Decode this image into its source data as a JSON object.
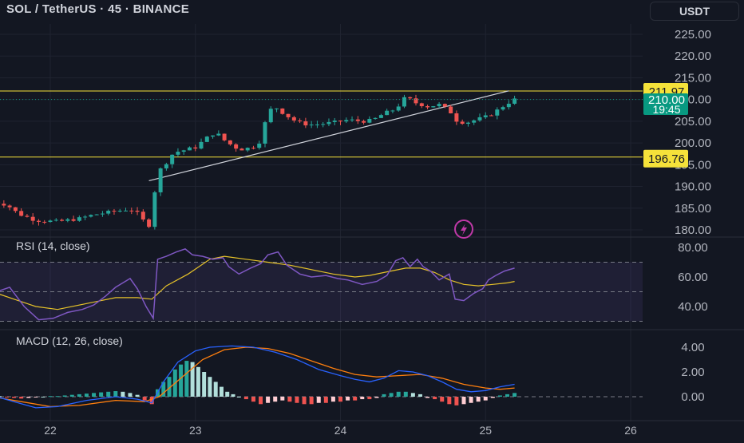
{
  "header": {
    "title": "SOL / TetherUS · 45 · BINANCE",
    "unit_button": "USDT"
  },
  "colors": {
    "up": "#26a69a",
    "down": "#ef5350",
    "level": "#f5e23a",
    "trend": "#d1d4dc",
    "rsi": "#7e57c2",
    "rsi_ma": "#e6c229",
    "macd": "#2962ff",
    "signal": "#ff7f0e",
    "price_tag": "#089981",
    "grid": "#1f2330",
    "bg": "#131722"
  },
  "chart_data": [
    {
      "type": "candlestick",
      "pane": "price",
      "ylim": [
        180,
        225
      ],
      "ytick_labels": [
        "225.00",
        "220.00",
        "215.00",
        "210.00",
        "205.00",
        "200.00",
        "195.00",
        "190.00",
        "185.00",
        "180.00"
      ],
      "yticks": [
        225,
        220,
        215,
        210,
        205,
        200,
        195,
        190,
        185,
        180
      ],
      "x": [
        21.6,
        26.2
      ],
      "xticks": [
        22,
        23,
        24,
        25,
        26
      ],
      "xtick_labels": [
        "22",
        "23",
        "24",
        "25",
        "26"
      ],
      "horizontal_levels": [
        {
          "value": 211.97,
          "label": "211.97"
        },
        {
          "value": 196.76,
          "label": "196.76"
        }
      ],
      "trendline": {
        "start": [
          22.68,
          191.3
        ],
        "end": [
          25.16,
          212.0
        ]
      },
      "last_price": {
        "value": 210.0,
        "label": "210.00",
        "countdown": "19:45"
      },
      "price_path": [
        [
          21.6,
          186.5
        ],
        [
          21.7,
          185.8
        ],
        [
          21.78,
          183.7
        ],
        [
          21.9,
          182.2
        ],
        [
          22.05,
          181.9
        ],
        [
          22.2,
          182.6
        ],
        [
          22.3,
          183.5
        ],
        [
          22.45,
          184.3
        ],
        [
          22.55,
          184.8
        ],
        [
          22.6,
          183.8
        ],
        [
          22.65,
          181.8
        ],
        [
          22.7,
          180.6
        ],
        [
          22.73,
          193
        ],
        [
          22.78,
          194.6
        ],
        [
          22.85,
          197.8
        ],
        [
          22.93,
          198.4
        ],
        [
          23.0,
          199
        ],
        [
          23.08,
          201.2
        ],
        [
          23.14,
          202.5
        ],
        [
          23.2,
          200.6
        ],
        [
          23.27,
          199.0
        ],
        [
          23.33,
          198.5
        ],
        [
          23.4,
          199.2
        ],
        [
          23.45,
          200.5
        ],
        [
          23.5,
          207.3
        ],
        [
          23.55,
          208.3
        ],
        [
          23.62,
          206.5
        ],
        [
          23.7,
          204.8
        ],
        [
          23.78,
          204.2
        ],
        [
          23.85,
          204.3
        ],
        [
          23.95,
          204.7
        ],
        [
          24.05,
          205.3
        ],
        [
          24.15,
          205.0
        ],
        [
          24.22,
          205.2
        ],
        [
          24.3,
          206.8
        ],
        [
          24.38,
          207.8
        ],
        [
          24.45,
          210.6
        ],
        [
          24.52,
          209.2
        ],
        [
          24.6,
          208.4
        ],
        [
          24.68,
          208.8
        ],
        [
          24.75,
          207.5
        ],
        [
          24.8,
          205.2
        ],
        [
          24.86,
          204.6
        ],
        [
          24.93,
          205.3
        ],
        [
          25.0,
          206.0
        ],
        [
          25.05,
          206.8
        ],
        [
          25.1,
          208.0
        ],
        [
          25.16,
          209.3
        ],
        [
          25.2,
          210.0
        ]
      ]
    },
    {
      "type": "line",
      "pane": "rsi",
      "title": "RSI (14, close)",
      "ylim": [
        25,
        85
      ],
      "yticks": [
        80,
        60,
        40
      ],
      "ytick_labels": [
        "80.00",
        "60.00",
        "40.00"
      ],
      "band": [
        30,
        70
      ],
      "mid": 50,
      "series": [
        {
          "key": "rsi",
          "values": [
            [
              21.6,
              49
            ],
            [
              21.72,
              53
            ],
            [
              21.82,
              40
            ],
            [
              21.92,
              31
            ],
            [
              22.02,
              32
            ],
            [
              22.12,
              36
            ],
            [
              22.22,
              38
            ],
            [
              22.3,
              41
            ],
            [
              22.38,
              47
            ],
            [
              22.45,
              53
            ],
            [
              22.55,
              59
            ],
            [
              22.6,
              52
            ],
            [
              22.66,
              40
            ],
            [
              22.71,
              32
            ],
            [
              22.74,
              72
            ],
            [
              22.8,
              74
            ],
            [
              22.87,
              77
            ],
            [
              22.93,
              79
            ],
            [
              22.98,
              75
            ],
            [
              23.05,
              74
            ],
            [
              23.12,
              72
            ],
            [
              23.19,
              73
            ],
            [
              23.23,
              67
            ],
            [
              23.3,
              62
            ],
            [
              23.38,
              66
            ],
            [
              23.45,
              69
            ],
            [
              23.5,
              75
            ],
            [
              23.57,
              77
            ],
            [
              23.63,
              68
            ],
            [
              23.72,
              62
            ],
            [
              23.8,
              60
            ],
            [
              23.9,
              61
            ],
            [
              23.98,
              59
            ],
            [
              24.05,
              58
            ],
            [
              24.15,
              55
            ],
            [
              24.25,
              57
            ],
            [
              24.32,
              61
            ],
            [
              24.38,
              71
            ],
            [
              24.43,
              73
            ],
            [
              24.48,
              67
            ],
            [
              24.53,
              72
            ],
            [
              24.57,
              67
            ],
            [
              24.62,
              64
            ],
            [
              24.68,
              58
            ],
            [
              24.75,
              62
            ],
            [
              24.79,
              45
            ],
            [
              24.85,
              44
            ],
            [
              24.92,
              49
            ],
            [
              24.98,
              52
            ],
            [
              25.02,
              58
            ],
            [
              25.07,
              61
            ],
            [
              25.13,
              64
            ],
            [
              25.2,
              66
            ]
          ]
        },
        {
          "key": "rsi_ma",
          "values": [
            [
              21.6,
              50
            ],
            [
              21.75,
              45
            ],
            [
              21.9,
              40
            ],
            [
              22.05,
              38
            ],
            [
              22.25,
              42
            ],
            [
              22.45,
              46
            ],
            [
              22.6,
              46
            ],
            [
              22.7,
              45
            ],
            [
              22.8,
              54
            ],
            [
              22.95,
              62
            ],
            [
              23.1,
              72
            ],
            [
              23.2,
              74
            ],
            [
              23.35,
              72
            ],
            [
              23.5,
              70
            ],
            [
              23.65,
              68
            ],
            [
              23.8,
              65
            ],
            [
              23.95,
              62
            ],
            [
              24.1,
              60
            ],
            [
              24.2,
              61
            ],
            [
              24.3,
              63
            ],
            [
              24.45,
              66
            ],
            [
              24.55,
              66
            ],
            [
              24.65,
              63
            ],
            [
              24.75,
              58
            ],
            [
              24.85,
              55
            ],
            [
              24.95,
              54
            ],
            [
              25.05,
              55
            ],
            [
              25.15,
              56
            ],
            [
              25.2,
              57
            ]
          ]
        }
      ]
    },
    {
      "type": "bar_line",
      "pane": "macd",
      "title": "MACD (12, 26, close)",
      "ylim": [
        -1.6,
        4.8
      ],
      "yticks": [
        4,
        2,
        0
      ],
      "ytick_labels": [
        "4.00",
        "2.00",
        "0.00"
      ],
      "series": [
        {
          "key": "macd",
          "values": [
            [
              21.6,
              0.1
            ],
            [
              21.75,
              -0.4
            ],
            [
              21.9,
              -0.9
            ],
            [
              22.05,
              -0.8
            ],
            [
              22.25,
              -0.3
            ],
            [
              22.45,
              0.0
            ],
            [
              22.6,
              -0.2
            ],
            [
              22.7,
              -0.5
            ],
            [
              22.78,
              1.2
            ],
            [
              22.88,
              2.8
            ],
            [
              23.0,
              3.7
            ],
            [
              23.1,
              4.0
            ],
            [
              23.25,
              4.1
            ],
            [
              23.4,
              4.0
            ],
            [
              23.55,
              3.6
            ],
            [
              23.7,
              3.0
            ],
            [
              23.85,
              2.2
            ],
            [
              24.0,
              1.7
            ],
            [
              24.1,
              1.4
            ],
            [
              24.2,
              1.2
            ],
            [
              24.3,
              1.5
            ],
            [
              24.4,
              2.1
            ],
            [
              24.5,
              2.0
            ],
            [
              24.6,
              1.7
            ],
            [
              24.7,
              1.2
            ],
            [
              24.8,
              0.6
            ],
            [
              24.9,
              0.4
            ],
            [
              25.0,
              0.5
            ],
            [
              25.1,
              0.8
            ],
            [
              25.2,
              1.0
            ]
          ]
        },
        {
          "key": "signal",
          "values": [
            [
              21.6,
              0.0
            ],
            [
              21.8,
              -0.4
            ],
            [
              22.0,
              -0.8
            ],
            [
              22.2,
              -0.7
            ],
            [
              22.45,
              -0.3
            ],
            [
              22.65,
              -0.4
            ],
            [
              22.75,
              0.0
            ],
            [
              22.9,
              1.5
            ],
            [
              23.05,
              3.0
            ],
            [
              23.2,
              3.8
            ],
            [
              23.35,
              4.0
            ],
            [
              23.5,
              3.9
            ],
            [
              23.65,
              3.5
            ],
            [
              23.8,
              2.9
            ],
            [
              23.95,
              2.3
            ],
            [
              24.1,
              1.8
            ],
            [
              24.25,
              1.6
            ],
            [
              24.4,
              1.7
            ],
            [
              24.55,
              1.8
            ],
            [
              24.7,
              1.5
            ],
            [
              24.85,
              1.0
            ],
            [
              25.0,
              0.7
            ],
            [
              25.1,
              0.6
            ],
            [
              25.2,
              0.7
            ]
          ]
        }
      ],
      "histogram": [
        [
          21.6,
          0.1
        ],
        [
          21.65,
          0.05
        ],
        [
          21.7,
          -0.05
        ],
        [
          21.75,
          -0.1
        ],
        [
          21.8,
          -0.15
        ],
        [
          21.85,
          -0.1
        ],
        [
          21.9,
          -0.05
        ],
        [
          21.95,
          0.0
        ],
        [
          22.0,
          0.05
        ],
        [
          22.05,
          0.05
        ],
        [
          22.1,
          0.1
        ],
        [
          22.15,
          0.15
        ],
        [
          22.2,
          0.2
        ],
        [
          22.25,
          0.25
        ],
        [
          22.3,
          0.3
        ],
        [
          22.35,
          0.35
        ],
        [
          22.4,
          0.4
        ],
        [
          22.45,
          0.45
        ],
        [
          22.5,
          0.4
        ],
        [
          22.55,
          0.3
        ],
        [
          22.6,
          0.15
        ],
        [
          22.65,
          -0.3
        ],
        [
          22.7,
          -0.6
        ],
        [
          22.74,
          0.6
        ],
        [
          22.78,
          1.2
        ],
        [
          22.82,
          1.6
        ],
        [
          22.86,
          2.2
        ],
        [
          22.9,
          2.6
        ],
        [
          22.94,
          2.9
        ],
        [
          22.98,
          2.8
        ],
        [
          23.02,
          2.4
        ],
        [
          23.06,
          2.0
        ],
        [
          23.1,
          1.6
        ],
        [
          23.14,
          1.2
        ],
        [
          23.18,
          0.8
        ],
        [
          23.22,
          0.4
        ],
        [
          23.26,
          0.2
        ],
        [
          23.3,
          0.0
        ],
        [
          23.35,
          -0.2
        ],
        [
          23.4,
          -0.4
        ],
        [
          23.45,
          -0.6
        ],
        [
          23.5,
          -0.5
        ],
        [
          23.55,
          -0.4
        ],
        [
          23.6,
          -0.3
        ],
        [
          23.65,
          -0.4
        ],
        [
          23.7,
          -0.5
        ],
        [
          23.75,
          -0.6
        ],
        [
          23.8,
          -0.6
        ],
        [
          23.85,
          -0.5
        ],
        [
          23.9,
          -0.5
        ],
        [
          23.95,
          -0.4
        ],
        [
          24.0,
          -0.4
        ],
        [
          24.05,
          -0.3
        ],
        [
          24.1,
          -0.3
        ],
        [
          24.15,
          -0.2
        ],
        [
          24.2,
          -0.2
        ],
        [
          24.25,
          -0.1
        ],
        [
          24.3,
          0.2
        ],
        [
          24.35,
          0.3
        ],
        [
          24.4,
          0.4
        ],
        [
          24.45,
          0.4
        ],
        [
          24.5,
          0.3
        ],
        [
          24.55,
          0.2
        ],
        [
          24.6,
          -0.1
        ],
        [
          24.65,
          -0.2
        ],
        [
          24.7,
          -0.4
        ],
        [
          24.75,
          -0.6
        ],
        [
          24.8,
          -0.7
        ],
        [
          24.85,
          -0.6
        ],
        [
          24.9,
          -0.5
        ],
        [
          24.95,
          -0.4
        ],
        [
          25.0,
          -0.3
        ],
        [
          25.05,
          -0.1
        ],
        [
          25.1,
          0.1
        ],
        [
          25.15,
          0.2
        ],
        [
          25.2,
          0.3
        ]
      ]
    }
  ]
}
